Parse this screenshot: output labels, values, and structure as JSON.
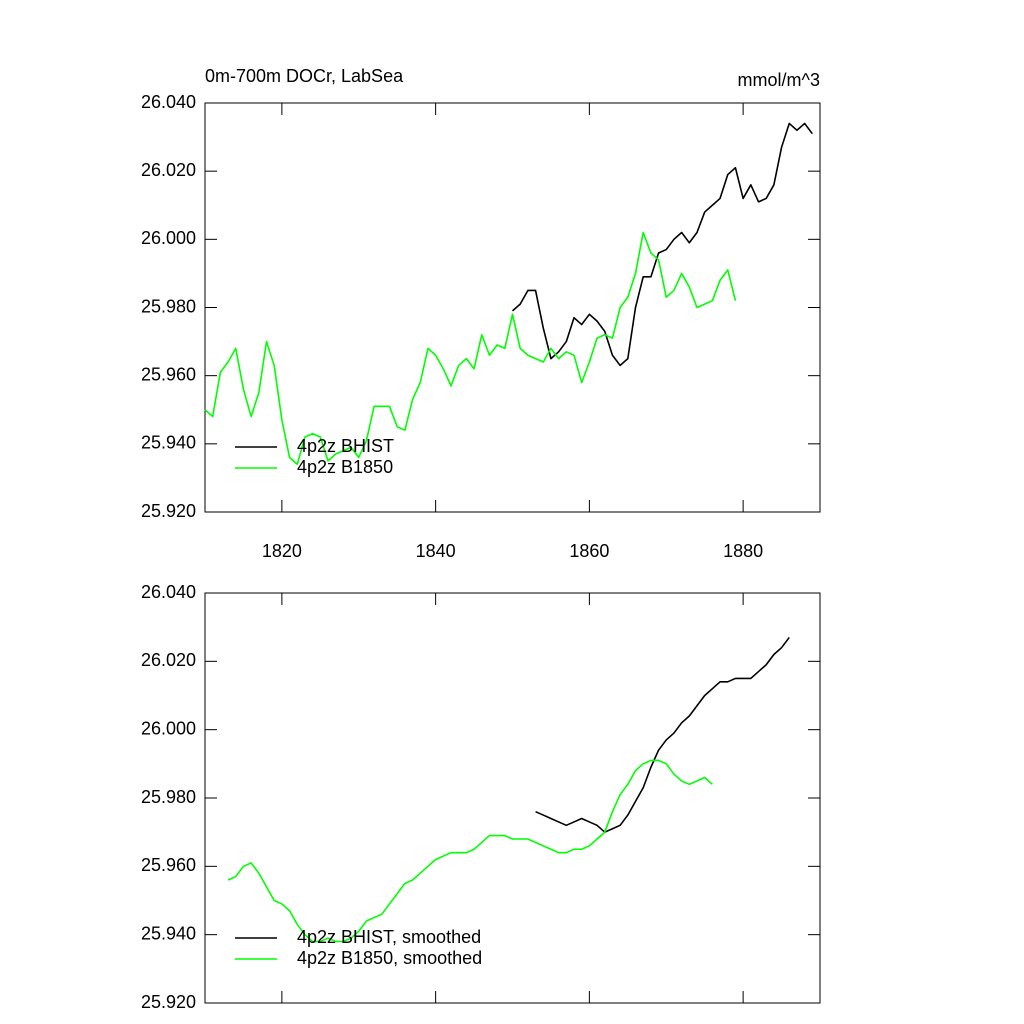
{
  "chart_data": [
    {
      "type": "line",
      "title": "0m-700m DOCr, LabSea",
      "units": "mmol/m^3",
      "xlim": [
        1810,
        1890
      ],
      "xticks": [
        1820,
        1840,
        1860,
        1880
      ],
      "xtick_labels": true,
      "ylim": [
        25.92,
        26.04
      ],
      "yticks": [
        {
          "value": 25.92,
          "label": "25.920"
        },
        {
          "value": 25.94,
          "label": "25.940"
        },
        {
          "value": 25.96,
          "label": "25.960"
        },
        {
          "value": 25.98,
          "label": "25.980"
        },
        {
          "value": 26.0,
          "label": "26.000"
        },
        {
          "value": 26.02,
          "label": "26.020"
        },
        {
          "value": 26.04,
          "label": "26.040"
        }
      ],
      "legend": "lower left",
      "series": [
        {
          "name": "4p2z BHIST",
          "color": "#000000",
          "x": [
            1850,
            1851,
            1852,
            1853,
            1854,
            1855,
            1856,
            1857,
            1858,
            1859,
            1860,
            1861,
            1862,
            1863,
            1864,
            1865,
            1866,
            1867,
            1868,
            1869,
            1870,
            1871,
            1872,
            1873,
            1874,
            1875,
            1876,
            1877,
            1878,
            1879,
            1880,
            1881,
            1882,
            1883,
            1884,
            1885,
            1886,
            1887,
            1888,
            1889
          ],
          "values": [
            25.979,
            25.981,
            25.985,
            25.985,
            25.974,
            25.965,
            25.967,
            25.97,
            25.977,
            25.975,
            25.978,
            25.976,
            25.973,
            25.966,
            25.963,
            25.965,
            25.98,
            25.989,
            25.989,
            25.996,
            25.997,
            26.0,
            26.002,
            25.999,
            26.002,
            26.008,
            26.01,
            26.012,
            26.019,
            26.021,
            26.012,
            26.016,
            26.011,
            26.012,
            26.016,
            26.027,
            26.034,
            26.032,
            26.034,
            26.031
          ]
        },
        {
          "name": "4p2z B1850",
          "color": "#00ff00",
          "x": [
            1810,
            1811,
            1812,
            1813,
            1814,
            1815,
            1816,
            1817,
            1818,
            1819,
            1820,
            1821,
            1822,
            1823,
            1824,
            1825,
            1826,
            1827,
            1828,
            1829,
            1830,
            1831,
            1832,
            1833,
            1834,
            1835,
            1836,
            1837,
            1838,
            1839,
            1840,
            1841,
            1842,
            1843,
            1844,
            1845,
            1846,
            1847,
            1848,
            1849,
            1850,
            1851,
            1852,
            1853,
            1854,
            1855,
            1856,
            1857,
            1858,
            1859,
            1860,
            1861,
            1862,
            1863,
            1864,
            1865,
            1866,
            1867,
            1868,
            1869,
            1870,
            1871,
            1872,
            1873,
            1874,
            1875,
            1876,
            1877,
            1878,
            1879
          ],
          "values": [
            25.95,
            25.948,
            25.961,
            25.964,
            25.968,
            25.956,
            25.948,
            25.955,
            25.97,
            25.963,
            25.947,
            25.936,
            25.934,
            25.942,
            25.943,
            25.942,
            25.935,
            25.937,
            25.938,
            25.939,
            25.936,
            25.941,
            25.951,
            25.951,
            25.951,
            25.945,
            25.944,
            25.953,
            25.958,
            25.968,
            25.966,
            25.962,
            25.957,
            25.963,
            25.965,
            25.962,
            25.972,
            25.966,
            25.969,
            25.968,
            25.978,
            25.968,
            25.966,
            25.965,
            25.964,
            25.968,
            25.965,
            25.967,
            25.966,
            25.958,
            25.964,
            25.971,
            25.972,
            25.971,
            25.98,
            25.983,
            25.99,
            26.002,
            25.996,
            25.994,
            25.983,
            25.985,
            25.99,
            25.986,
            25.98,
            25.981,
            25.982,
            25.988,
            25.991,
            25.982
          ]
        }
      ]
    },
    {
      "type": "line",
      "xlim": [
        1810,
        1890
      ],
      "xticks": [
        1820,
        1840,
        1860,
        1880
      ],
      "xtick_labels": false,
      "ylim": [
        25.92,
        26.04
      ],
      "yticks": [
        {
          "value": 25.92,
          "label": "25.920"
        },
        {
          "value": 25.94,
          "label": "25.940"
        },
        {
          "value": 25.96,
          "label": "25.960"
        },
        {
          "value": 25.98,
          "label": "25.980"
        },
        {
          "value": 26.0,
          "label": "26.000"
        },
        {
          "value": 26.02,
          "label": "26.020"
        },
        {
          "value": 26.04,
          "label": "26.040"
        }
      ],
      "legend": "lower left",
      "series": [
        {
          "name": "4p2z BHIST, smoothed",
          "color": "#000000",
          "x": [
            1853,
            1854,
            1855,
            1856,
            1857,
            1858,
            1859,
            1860,
            1861,
            1862,
            1863,
            1864,
            1865,
            1866,
            1867,
            1868,
            1869,
            1870,
            1871,
            1872,
            1873,
            1874,
            1875,
            1876,
            1877,
            1878,
            1879,
            1880,
            1881,
            1882,
            1883,
            1884,
            1885,
            1886
          ],
          "values": [
            25.976,
            25.975,
            25.974,
            25.973,
            25.972,
            25.973,
            25.974,
            25.973,
            25.972,
            25.97,
            25.971,
            25.972,
            25.975,
            25.979,
            25.983,
            25.989,
            25.994,
            25.997,
            25.999,
            26.002,
            26.004,
            26.007,
            26.01,
            26.012,
            26.014,
            26.014,
            26.015,
            26.015,
            26.015,
            26.017,
            26.019,
            26.022,
            26.024,
            26.027
          ]
        },
        {
          "name": "4p2z B1850, smoothed",
          "color": "#00ff00",
          "x": [
            1813,
            1814,
            1815,
            1816,
            1817,
            1818,
            1819,
            1820,
            1821,
            1822,
            1823,
            1824,
            1825,
            1826,
            1827,
            1828,
            1829,
            1830,
            1831,
            1832,
            1833,
            1834,
            1835,
            1836,
            1837,
            1838,
            1839,
            1840,
            1841,
            1842,
            1843,
            1844,
            1845,
            1846,
            1847,
            1848,
            1849,
            1850,
            1851,
            1852,
            1853,
            1854,
            1855,
            1856,
            1857,
            1858,
            1859,
            1860,
            1861,
            1862,
            1863,
            1864,
            1865,
            1866,
            1867,
            1868,
            1869,
            1870,
            1871,
            1872,
            1873,
            1874,
            1875,
            1876
          ],
          "values": [
            25.956,
            25.957,
            25.96,
            25.961,
            25.958,
            25.954,
            25.95,
            25.949,
            25.947,
            25.943,
            25.94,
            25.938,
            25.938,
            25.939,
            25.938,
            25.938,
            25.939,
            25.941,
            25.944,
            25.945,
            25.946,
            25.949,
            25.952,
            25.955,
            25.956,
            25.958,
            25.96,
            25.962,
            25.963,
            25.964,
            25.964,
            25.964,
            25.965,
            25.967,
            25.969,
            25.969,
            25.969,
            25.968,
            25.968,
            25.968,
            25.967,
            25.966,
            25.965,
            25.964,
            25.964,
            25.965,
            25.965,
            25.966,
            25.968,
            25.97,
            25.976,
            25.981,
            25.984,
            25.988,
            25.99,
            25.991,
            25.991,
            25.99,
            25.987,
            25.985,
            25.984,
            25.985,
            25.986,
            25.984
          ]
        }
      ]
    }
  ]
}
